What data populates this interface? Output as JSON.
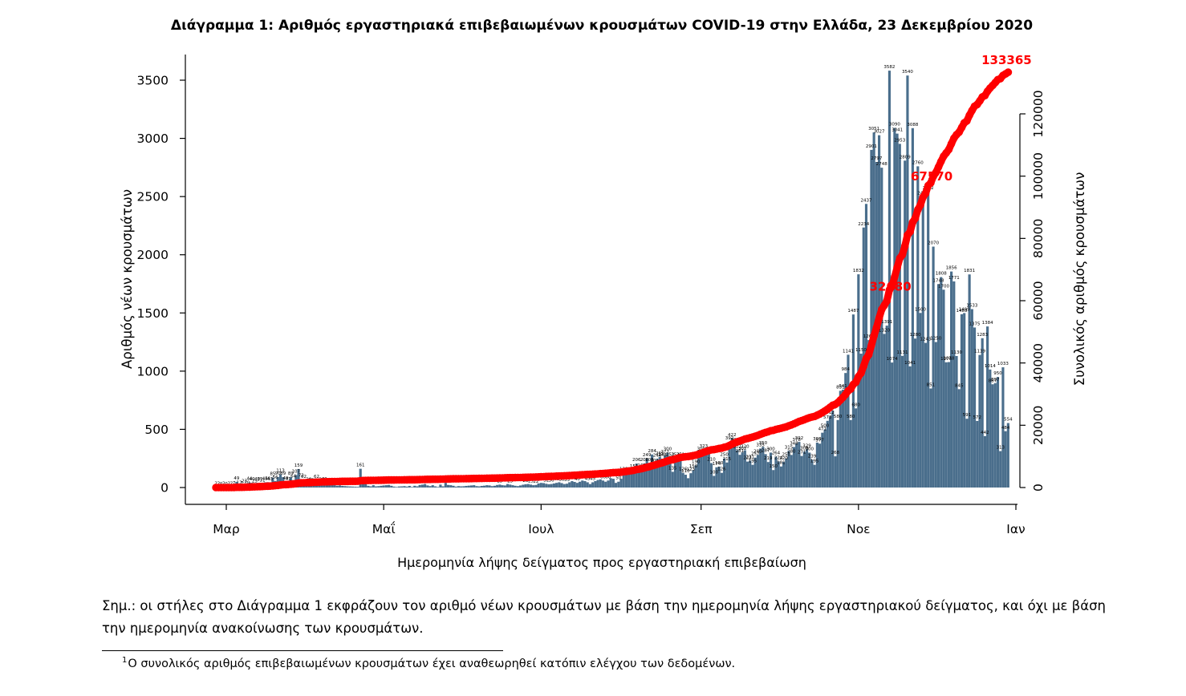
{
  "chart_data": {
    "type": "bar",
    "title": "Διάγραμμα 1: Αριθμός εργαστηριακά επιβεβαιωμένων κρουσμάτων COVID-19 στην Ελλάδα, 23 Δεκεμβρίου 2020",
    "xlabel": "Ημερομηνία λήψης δείγματος προς εργαστηριακή επιβεβαίωση",
    "ylabel": "Αριθμός νέων κρουσμάτων",
    "y2label": "Συνολικός αριθμός κρουσμάτων",
    "x_start": "2020-02-26",
    "x_ticks": [
      {
        "label": "Μαρ",
        "date": "2020-03-01"
      },
      {
        "label": "Μαΐ",
        "date": "2020-05-01"
      },
      {
        "label": "Ιουλ",
        "date": "2020-07-01"
      },
      {
        "label": "Σεπ",
        "date": "2020-09-01"
      },
      {
        "label": "Νοε",
        "date": "2020-11-01"
      },
      {
        "label": "Ιαν",
        "date": "2021-01-01"
      }
    ],
    "ylim": [
      0,
      3700
    ],
    "yticks": [
      0,
      500,
      1000,
      1500,
      2000,
      2500,
      3000,
      3500
    ],
    "y2lim": [
      0,
      135000
    ],
    "y2ticks": [
      0,
      20000,
      40000,
      60000,
      80000,
      100000,
      120000
    ],
    "bar_color": "#4a6e8c",
    "cumulative_color": "#ff0000",
    "values": [
      2,
      2,
      0,
      2,
      0,
      2,
      2,
      7,
      49,
      12,
      7,
      23,
      10,
      44,
      40,
      25,
      40,
      37,
      31,
      45,
      46,
      43,
      85,
      56,
      90,
      113,
      89,
      49,
      41,
      89,
      64,
      107,
      159,
      73,
      62,
      21,
      39,
      31,
      30,
      62,
      29,
      39,
      40,
      27,
      22,
      24,
      20,
      15,
      18,
      14,
      12,
      10,
      9,
      8,
      7,
      6,
      161,
      53,
      30,
      15,
      10,
      20,
      10,
      12,
      15,
      18,
      20,
      22,
      15,
      8,
      5,
      9,
      10,
      12,
      8,
      14,
      5,
      15,
      10,
      22,
      25,
      30,
      18,
      12,
      20,
      10,
      5,
      25,
      10,
      40,
      22,
      20,
      15,
      8,
      12,
      10,
      11,
      14,
      16,
      18,
      20,
      12,
      10,
      14,
      16,
      20,
      18,
      12,
      15,
      22,
      25,
      20,
      18,
      30,
      25,
      20,
      15,
      12,
      18,
      24,
      28,
      30,
      25,
      20,
      22,
      35,
      40,
      38,
      32,
      28,
      30,
      35,
      40,
      45,
      38,
      30,
      33,
      45,
      55,
      48,
      40,
      50,
      60,
      55,
      45,
      30,
      45,
      55,
      65,
      70,
      60,
      50,
      60,
      80,
      75,
      40,
      50,
      75,
      128,
      110,
      121,
      115,
      151,
      206,
      134,
      160,
      206,
      249,
      208,
      284,
      201,
      244,
      263,
      248,
      277,
      300,
      253,
      135,
      253,
      225,
      251,
      126,
      110,
      80,
      123,
      150,
      190,
      255,
      300,
      323,
      283,
      290,
      210,
      100,
      174,
      180,
      126,
      250,
      215,
      392,
      422,
      380,
      321,
      281,
      302,
      320,
      223,
      231,
      195,
      257,
      280,
      335,
      350,
      287,
      219,
      300,
      150,
      264,
      224,
      181,
      220,
      250,
      315,
      280,
      348,
      378,
      392,
      271,
      308,
      329,
      300,
      239,
      195,
      386,
      377,
      471,
      500,
      573,
      612,
      659,
      268,
      580,
      831,
      841,
      984,
      1141,
      580,
      1487,
      680,
      1832,
      1150,
      2234,
      2437,
      1267,
      2901,
      3051,
      2797,
      3027,
      2748,
      1320,
      1391,
      3582,
      1074,
      3090,
      3041,
      2953,
      1131,
      2809,
      3540,
      1041,
      3088,
      1280,
      2760,
      1500,
      2496,
      1243,
      2542,
      851,
      2070,
      1250,
      1748,
      1808,
      1700,
      1076,
      1078,
      1856,
      1771,
      1130,
      845,
      1489,
      1499,
      591,
      1831,
      1533,
      1375,
      572,
      1139,
      1283,
      442,
      1384,
      1014,
      887,
      897,
      950,
      313,
      1033,
      484,
      554
    ],
    "milestones": [
      {
        "label": "32680",
        "index": 262
      },
      {
        "label": "67570",
        "index": 278
      },
      {
        "label": "133365",
        "index": 330
      }
    ]
  },
  "note": "Σημ.: οι στήλες στο Διάγραμμα 1 εκφράζουν τον αριθμό νέων κρουσμάτων με βάση την ημερομηνία λήψης εργαστηριακού δείγματος, και όχι με βάση την ημερομηνία ανακοίνωσης των κρουσμάτων.",
  "footnote": {
    "marker": "1",
    "text": "Ο συνολικός αριθμός επιβεβαιωμένων κρουσμάτων έχει αναθεωρηθεί κατόπιν ελέγχου των δεδομένων."
  }
}
